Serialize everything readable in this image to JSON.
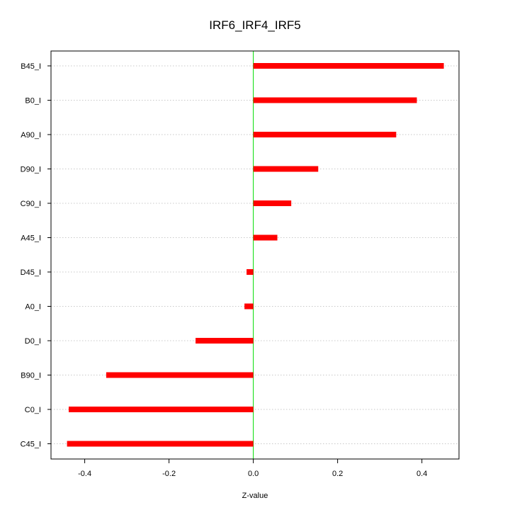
{
  "chart_data": {
    "type": "bar",
    "orientation": "horizontal",
    "title": "IRF6_IRF4_IRF5",
    "xlabel": "Z-value",
    "ylabel": "",
    "categories": [
      "B45_I",
      "B0_I",
      "A90_I",
      "D90_I",
      "C90_I",
      "A45_I",
      "D45_I",
      "A0_I",
      "D0_I",
      "B90_I",
      "C0_I",
      "C45_I"
    ],
    "values": [
      0.452,
      0.388,
      0.339,
      0.154,
      0.09,
      0.057,
      -0.016,
      -0.021,
      -0.137,
      -0.349,
      -0.438,
      -0.442
    ],
    "xlim": [
      -0.48,
      0.488
    ],
    "xticks": [
      -0.4,
      -0.2,
      0.0,
      0.2,
      0.4
    ],
    "xtick_labels": [
      "-0.4",
      "-0.2",
      "0.0",
      "0.2",
      "0.4"
    ],
    "reference_line": 0,
    "grid": "horizontal dotted",
    "colors": {
      "bar": "#ff0000",
      "zero_line": "#00dd00",
      "grid": "#c8c8c8",
      "frame": "#000000"
    }
  }
}
